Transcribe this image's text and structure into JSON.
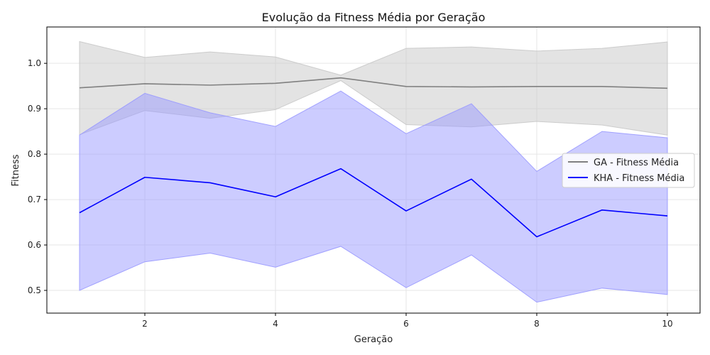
{
  "chart_data": {
    "type": "line",
    "title": "Evolução da Fitness Média por Geração",
    "xlabel": "Geração",
    "ylabel": "Fitness",
    "xlim": [
      0.5,
      10.5
    ],
    "ylim": [
      0.45,
      1.08
    ],
    "x": [
      1,
      2,
      3,
      4,
      5,
      6,
      7,
      8,
      9,
      10
    ],
    "xticks": [
      2,
      4,
      6,
      8,
      10
    ],
    "yticks": [
      0.5,
      0.6,
      0.7,
      0.8,
      0.9,
      1.0
    ],
    "grid": true,
    "legend_position": "center-right",
    "series": [
      {
        "name": "GA - Fitness Média",
        "color": "#808080",
        "band_color": "#c8c8c8",
        "values": [
          0.946,
          0.955,
          0.952,
          0.956,
          0.968,
          0.949,
          0.948,
          0.949,
          0.949,
          0.945
        ],
        "lower": [
          0.843,
          0.896,
          0.879,
          0.898,
          0.962,
          0.865,
          0.86,
          0.872,
          0.864,
          0.842
        ],
        "upper": [
          1.048,
          1.013,
          1.025,
          1.014,
          0.974,
          1.033,
          1.036,
          1.027,
          1.033,
          1.047
        ]
      },
      {
        "name": "KHA - Fitness Média",
        "color": "#0000ff",
        "band_color": "#9999ff",
        "values": [
          0.671,
          0.749,
          0.737,
          0.706,
          0.768,
          0.675,
          0.745,
          0.618,
          0.677,
          0.664
        ],
        "lower": [
          0.5,
          0.563,
          0.582,
          0.551,
          0.597,
          0.506,
          0.578,
          0.474,
          0.505,
          0.491
        ],
        "upper": [
          0.842,
          0.934,
          0.891,
          0.861,
          0.939,
          0.845,
          0.911,
          0.762,
          0.85,
          0.836
        ]
      }
    ]
  }
}
